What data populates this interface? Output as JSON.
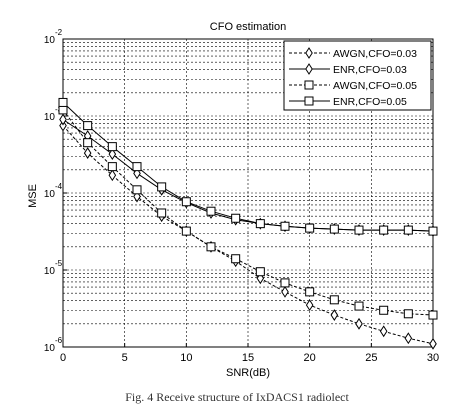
{
  "chart_data": {
    "type": "line",
    "title": "CFO estimation",
    "xlabel": "SNR(dB)",
    "ylabel": "MSE",
    "xlim": [
      0,
      30
    ],
    "ylim": [
      1e-06,
      0.01
    ],
    "yscale": "log",
    "grid": true,
    "legend_position": "top-right",
    "x_ticks": [
      0,
      5,
      10,
      15,
      20,
      25,
      30
    ],
    "y_ticks": [
      {
        "value": 1e-06,
        "base": "10",
        "exp": "-6"
      },
      {
        "value": 1e-05,
        "base": "10",
        "exp": "-5"
      },
      {
        "value": 0.0001,
        "base": "10",
        "exp": "-4"
      },
      {
        "value": 0.001,
        "base": "10",
        "exp": "-3"
      },
      {
        "value": 0.01,
        "base": "10",
        "exp": "-2"
      }
    ],
    "x": [
      0,
      2,
      4,
      6,
      8,
      10,
      12,
      14,
      16,
      18,
      20,
      22,
      24,
      26,
      28,
      30
    ],
    "series": [
      {
        "name": "AWGN,CFO=0.03",
        "marker": "diamond",
        "dash": true,
        "values": [
          0.00075,
          0.00033,
          0.00017,
          9e-05,
          5e-05,
          3.2e-05,
          2e-05,
          1.3e-05,
          7.8e-06,
          5.2e-06,
          3.5e-06,
          2.6e-06,
          2e-06,
          1.6e-06,
          1.3e-06,
          1.1e-06
        ]
      },
      {
        "name": "ENR,CFO=0.03",
        "marker": "diamond",
        "dash": false,
        "values": [
          0.0009,
          0.00055,
          0.00032,
          0.00018,
          0.00011,
          7.5e-05,
          5.5e-05,
          4.5e-05,
          4e-05,
          3.7e-05,
          3.5e-05,
          3.4e-05,
          3.3e-05,
          3.3e-05,
          3.3e-05,
          3.2e-05
        ]
      },
      {
        "name": "AWGN,CFO=0.05",
        "marker": "square",
        "dash": true,
        "values": [
          0.0012,
          0.00045,
          0.00022,
          0.00011,
          5.5e-05,
          3.2e-05,
          2e-05,
          1.4e-05,
          9.5e-06,
          6.8e-06,
          5.2e-06,
          4.1e-06,
          3.4e-06,
          3e-06,
          2.7e-06,
          2.6e-06
        ]
      },
      {
        "name": "ENR,CFO=0.05",
        "marker": "square",
        "dash": false,
        "values": [
          0.0015,
          0.00075,
          0.0004,
          0.00022,
          0.00012,
          7.7e-05,
          5.8e-05,
          4.7e-05,
          4e-05,
          3.7e-05,
          3.5e-05,
          3.4e-05,
          3.3e-05,
          3.3e-05,
          3.3e-05,
          3.2e-05
        ]
      }
    ]
  },
  "caption": "Fig. 4      Receive  structure of IxDACS1 radiolect"
}
